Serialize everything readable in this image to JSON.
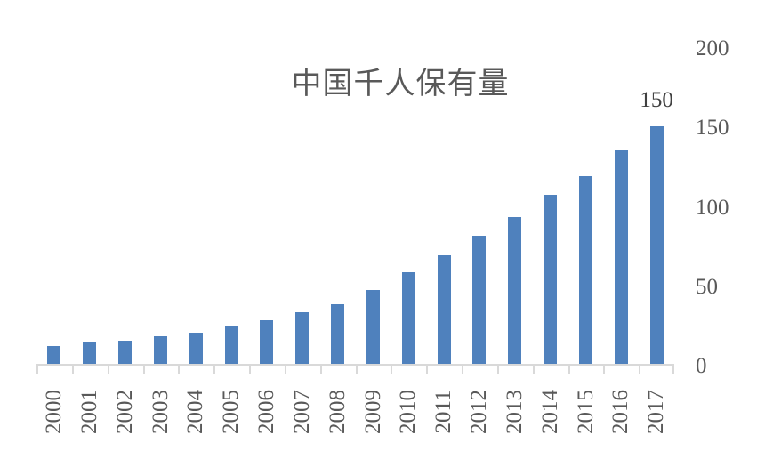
{
  "chart_data": {
    "type": "bar",
    "title": "中国千人保有量",
    "xlabel": "",
    "ylabel": "",
    "categories": [
      "2000",
      "2001",
      "2002",
      "2003",
      "2004",
      "2005",
      "2006",
      "2007",
      "2008",
      "2009",
      "2010",
      "2011",
      "2012",
      "2013",
      "2014",
      "2015",
      "2016",
      "2017"
    ],
    "values": [
      12,
      14,
      15,
      18,
      20,
      24,
      28,
      33,
      38,
      47,
      58,
      69,
      81,
      93,
      107,
      119,
      135,
      150
    ],
    "ylim": [
      0,
      200
    ],
    "yticks": [
      "0",
      "50",
      "100",
      "150",
      "200"
    ],
    "y_axis_position": "right",
    "grid": false,
    "legend": null,
    "annotations": [
      {
        "category": "2017",
        "text": "150"
      }
    ],
    "bar_color": "#4f81bd"
  }
}
